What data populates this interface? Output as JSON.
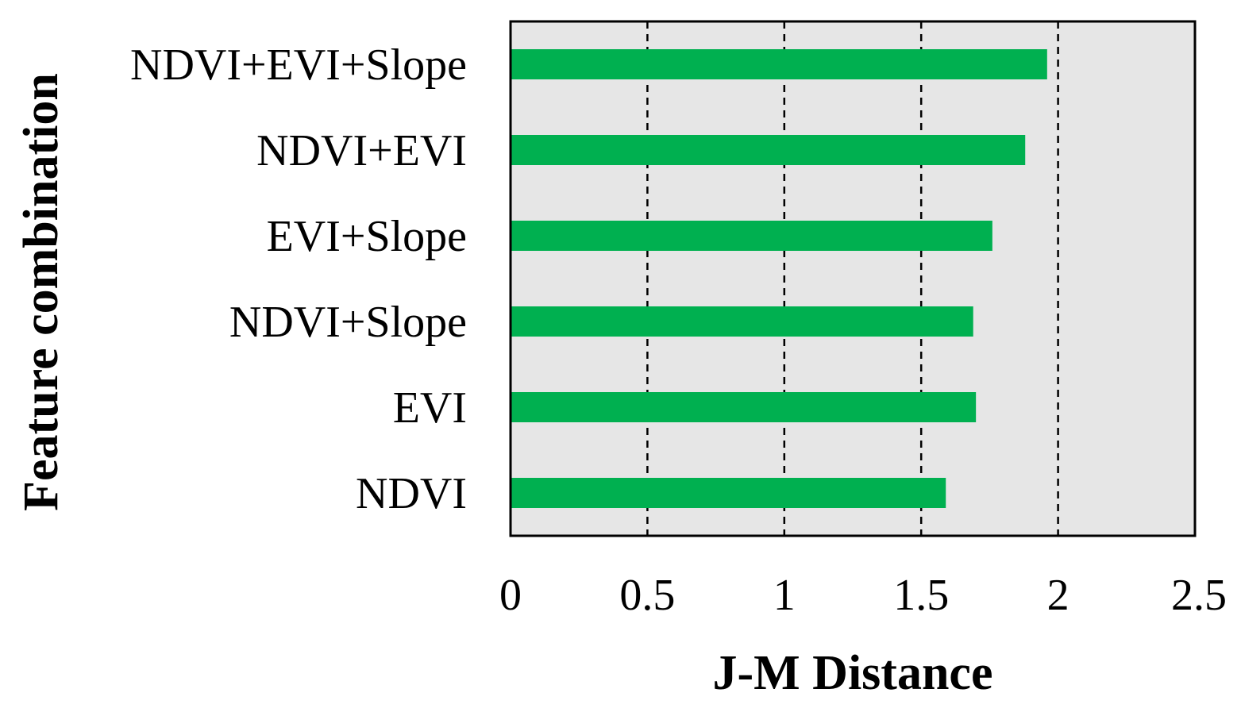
{
  "chart_data": {
    "type": "bar",
    "orientation": "horizontal",
    "categories": [
      "NDVI+EVI+Slope",
      "NDVI+EVI",
      "EVI+Slope",
      "NDVI+Slope",
      "EVI",
      "NDVI"
    ],
    "values": [
      1.96,
      1.88,
      1.76,
      1.69,
      1.7,
      1.59
    ],
    "xlabel": "J-M Distance",
    "ylabel": "Feature combination",
    "xlim": [
      0,
      2.5
    ],
    "xticks": [
      "0",
      "0.5",
      "1",
      "1.5",
      "2",
      "2.5"
    ],
    "grid": "vertical dashed",
    "bar_color": "#00b050",
    "plot_background": "#e6e6e6"
  }
}
